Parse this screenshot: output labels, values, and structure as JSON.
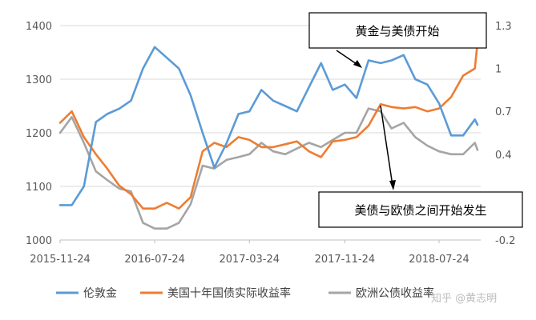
{
  "chart_data": {
    "type": "line",
    "x_ticks": [
      "2015-11-24",
      "2016-07-24",
      "2017-03-24",
      "2017-11-24",
      "2018-07-24"
    ],
    "y_left": {
      "min": 1000,
      "max": 1400,
      "ticks": [
        "1000",
        "1100",
        "1200",
        "1300",
        "1400"
      ]
    },
    "y_right": {
      "min": -0.2,
      "max": 1.3,
      "ticks": [
        "-0.2",
        "0.4",
        "0.7",
        "1",
        "1.3"
      ]
    },
    "grid": "horizontal",
    "legend_position": "bottom",
    "annotations": [
      {
        "text": "黄金与美债开始",
        "points_to": "2018-04"
      },
      {
        "text": "美债与欧债之间开始发生",
        "points_to": "2018-01"
      }
    ],
    "series": [
      {
        "name": "伦敦金",
        "axis": "left",
        "color": "#5B9BD5",
        "x": [
          "2015-11-24",
          "2015-12-24",
          "2016-01-24",
          "2016-02-24",
          "2016-03-24",
          "2016-04-24",
          "2016-05-24",
          "2016-06-24",
          "2016-07-24",
          "2016-08-24",
          "2016-09-24",
          "2016-10-24",
          "2016-11-24",
          "2016-12-24",
          "2017-01-24",
          "2017-02-24",
          "2017-03-24",
          "2017-04-24",
          "2017-05-24",
          "2017-06-24",
          "2017-07-24",
          "2017-08-24",
          "2017-09-24",
          "2017-10-24",
          "2017-11-24",
          "2017-12-24",
          "2018-01-24",
          "2018-02-24",
          "2018-03-24",
          "2018-04-24",
          "2018-05-24",
          "2018-06-24",
          "2018-07-24",
          "2018-08-24",
          "2018-09-24",
          "2018-10-24",
          "2018-11-24"
        ],
        "y": [
          1065,
          1065,
          1100,
          1220,
          1235,
          1245,
          1260,
          1320,
          1360,
          1340,
          1320,
          1270,
          1200,
          1135,
          1180,
          1235,
          1240,
          1280,
          1260,
          1250,
          1240,
          1285,
          1330,
          1280,
          1290,
          1265,
          1335,
          1330,
          1335,
          1345,
          1300,
          1290,
          1255,
          1195,
          1195,
          1225,
          1215
        ]
      },
      {
        "name": "美国十年国债实际收益率",
        "axis": "right",
        "color": "#ED7D31",
        "x": [
          "2015-11-24",
          "2015-12-24",
          "2016-01-24",
          "2016-02-24",
          "2016-03-24",
          "2016-04-24",
          "2016-05-24",
          "2016-06-24",
          "2016-07-24",
          "2016-08-24",
          "2016-09-24",
          "2016-10-24",
          "2016-11-24",
          "2016-12-24",
          "2017-01-24",
          "2017-02-24",
          "2017-03-24",
          "2017-04-24",
          "2017-05-24",
          "2017-06-24",
          "2017-07-24",
          "2017-08-24",
          "2017-09-24",
          "2017-10-24",
          "2017-11-24",
          "2017-12-24",
          "2018-01-24",
          "2018-02-24",
          "2018-03-24",
          "2018-04-24",
          "2018-05-24",
          "2018-06-24",
          "2018-07-24",
          "2018-08-24",
          "2018-09-24",
          "2018-10-24",
          "2018-11-24"
        ],
        "y": [
          0.62,
          0.7,
          0.52,
          0.4,
          0.3,
          0.18,
          0.12,
          0.02,
          0.02,
          0.06,
          0.02,
          0.1,
          0.42,
          0.48,
          0.45,
          0.52,
          0.5,
          0.45,
          0.45,
          0.47,
          0.49,
          0.42,
          0.38,
          0.49,
          0.5,
          0.52,
          0.6,
          0.75,
          0.73,
          0.72,
          0.73,
          0.7,
          0.72,
          0.8,
          0.95,
          1.0,
          1.18
        ]
      },
      {
        "name": "欧洲公债收益率",
        "axis": "right",
        "color": "#A5A5A5",
        "x": [
          "2015-11-24",
          "2015-12-24",
          "2016-01-24",
          "2016-02-24",
          "2016-03-24",
          "2016-04-24",
          "2016-05-24",
          "2016-06-24",
          "2016-07-24",
          "2016-08-24",
          "2016-09-24",
          "2016-10-24",
          "2016-11-24",
          "2016-12-24",
          "2017-01-24",
          "2017-02-24",
          "2017-03-24",
          "2017-04-24",
          "2017-05-24",
          "2017-06-24",
          "2017-07-24",
          "2017-08-24",
          "2017-09-24",
          "2017-10-24",
          "2017-11-24",
          "2017-12-24",
          "2018-01-24",
          "2018-02-24",
          "2018-03-24",
          "2018-04-24",
          "2018-05-24",
          "2018-06-24",
          "2018-07-24",
          "2018-08-24",
          "2018-09-24",
          "2018-10-24",
          "2018-11-24"
        ],
        "y": [
          0.55,
          0.66,
          0.48,
          0.28,
          0.22,
          0.16,
          0.14,
          -0.08,
          -0.12,
          -0.12,
          -0.08,
          0.05,
          0.32,
          0.3,
          0.36,
          0.38,
          0.4,
          0.48,
          0.42,
          0.4,
          0.44,
          0.48,
          0.45,
          0.5,
          0.55,
          0.55,
          0.72,
          0.7,
          0.58,
          0.62,
          0.52,
          0.46,
          0.42,
          0.4,
          0.4,
          0.48,
          0.43
        ]
      }
    ]
  },
  "watermark": "知乎 @黄志明"
}
